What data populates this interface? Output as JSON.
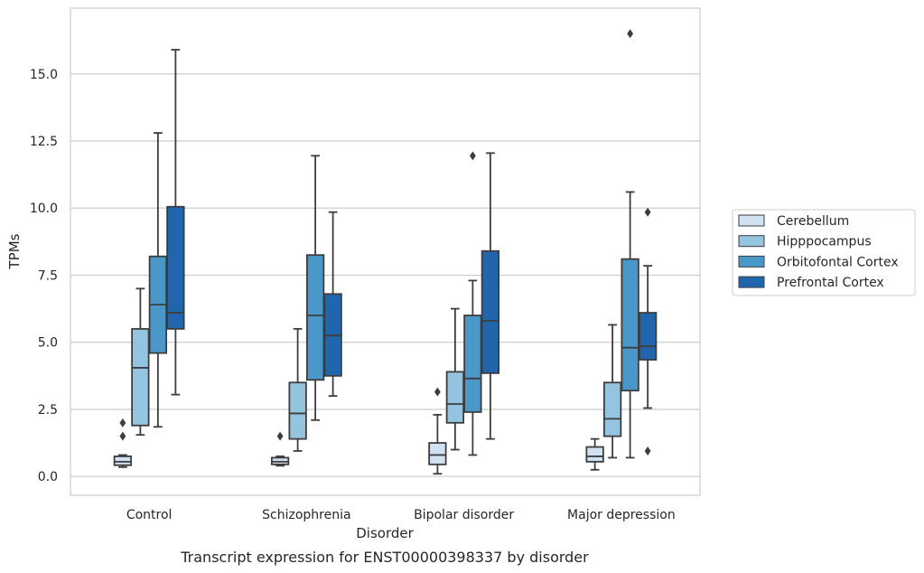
{
  "chart_data": {
    "type": "box",
    "caption": "Transcript expression for ENST00000398337 by disorder",
    "xlabel": "Disorder",
    "ylabel": "TPMs",
    "ylim": [
      -0.7,
      17.45
    ],
    "yticks": [
      "0.0",
      "2.5",
      "5.0",
      "7.5",
      "10.0",
      "12.5",
      "15.0"
    ],
    "ytick_values": [
      0,
      2.5,
      5,
      7.5,
      10,
      12.5,
      15
    ],
    "grid": "horizontal",
    "legend_position": "right",
    "categories": [
      "Control",
      "Schizophrenia",
      "Bipolar disorder",
      "Major depression"
    ],
    "series": [
      {
        "name": "Cerebellum",
        "color": "#d0e1f2",
        "boxes": [
          {
            "whislo": 0.35,
            "q1": 0.42,
            "med": 0.55,
            "q3": 0.75,
            "whishi": 0.8,
            "fliers": [
              1.5,
              2.0
            ]
          },
          {
            "whislo": 0.4,
            "q1": 0.45,
            "med": 0.55,
            "q3": 0.7,
            "whishi": 0.75,
            "fliers": [
              1.5
            ]
          },
          {
            "whislo": 0.1,
            "q1": 0.45,
            "med": 0.8,
            "q3": 1.25,
            "whishi": 2.3,
            "fliers": [
              3.15
            ]
          },
          {
            "whislo": 0.25,
            "q1": 0.55,
            "med": 0.75,
            "q3": 1.1,
            "whishi": 1.4,
            "fliers": []
          }
        ]
      },
      {
        "name": "Hipppocampus",
        "color": "#94c4df",
        "boxes": [
          {
            "whislo": 1.55,
            "q1": 1.9,
            "med": 4.05,
            "q3": 5.5,
            "whishi": 7.0,
            "fliers": []
          },
          {
            "whislo": 0.95,
            "q1": 1.4,
            "med": 2.35,
            "q3": 3.5,
            "whishi": 5.5,
            "fliers": []
          },
          {
            "whislo": 1.0,
            "q1": 2.0,
            "med": 2.7,
            "q3": 3.9,
            "whishi": 6.25,
            "fliers": []
          },
          {
            "whislo": 0.7,
            "q1": 1.5,
            "med": 2.15,
            "q3": 3.5,
            "whishi": 5.65,
            "fliers": []
          }
        ]
      },
      {
        "name": "Orbitofontal Cortex",
        "color": "#4a98c9",
        "boxes": [
          {
            "whislo": 1.85,
            "q1": 4.6,
            "med": 6.4,
            "q3": 8.2,
            "whishi": 12.8,
            "fliers": []
          },
          {
            "whislo": 2.1,
            "q1": 3.6,
            "med": 6.0,
            "q3": 8.25,
            "whishi": 11.95,
            "fliers": []
          },
          {
            "whislo": 0.8,
            "q1": 2.4,
            "med": 3.65,
            "q3": 6.0,
            "whishi": 7.3,
            "fliers": [
              11.95
            ]
          },
          {
            "whislo": 0.7,
            "q1": 3.2,
            "med": 4.8,
            "q3": 8.1,
            "whishi": 10.6,
            "fliers": [
              16.5
            ]
          }
        ]
      },
      {
        "name": "Prefrontal Cortex",
        "color": "#2166ac",
        "boxes": [
          {
            "whislo": 3.05,
            "q1": 5.5,
            "med": 6.1,
            "q3": 10.05,
            "whishi": 15.9,
            "fliers": []
          },
          {
            "whislo": 3.0,
            "q1": 3.75,
            "med": 5.25,
            "q3": 6.8,
            "whishi": 9.85,
            "fliers": []
          },
          {
            "whislo": 1.4,
            "q1": 3.85,
            "med": 5.8,
            "q3": 8.4,
            "whishi": 12.05,
            "fliers": []
          },
          {
            "whislo": 2.55,
            "q1": 4.35,
            "med": 4.85,
            "q3": 6.1,
            "whishi": 7.85,
            "fliers": [
              9.85,
              0.95
            ]
          }
        ]
      }
    ]
  }
}
